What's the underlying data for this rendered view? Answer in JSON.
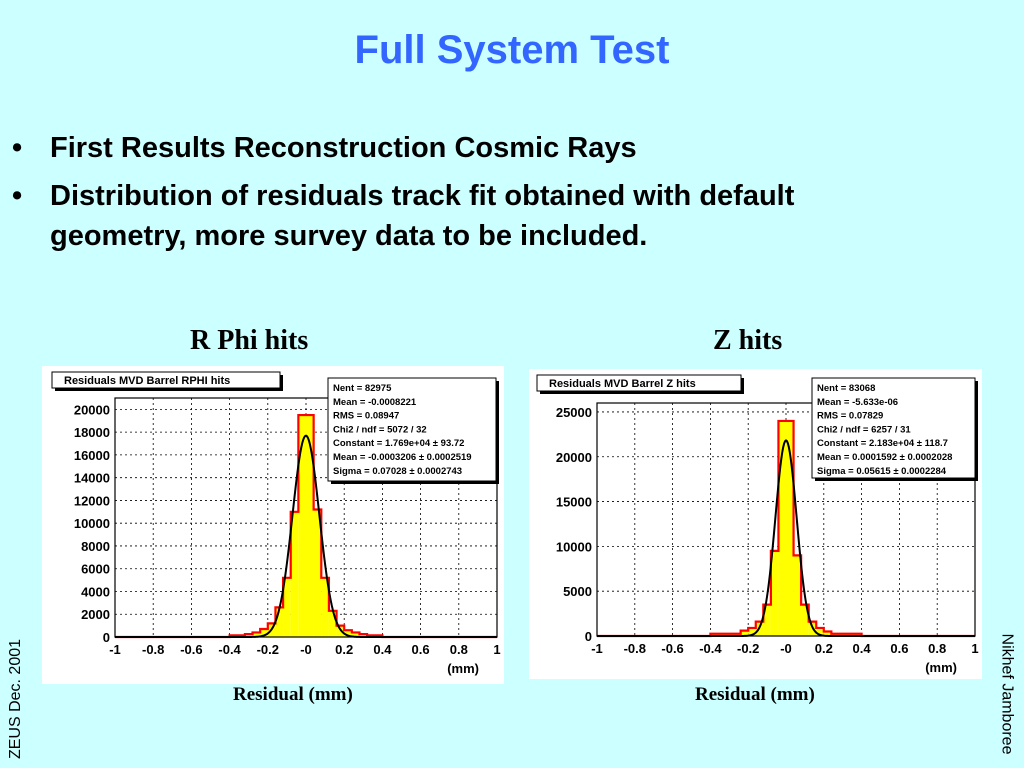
{
  "slide": {
    "title": "Full System Test",
    "bullets": [
      {
        "marker": "•",
        "text": "First Results Reconstruction Cosmic Rays"
      },
      {
        "marker": "•",
        "text": "Distribution of residuals  track fit obtained with default geometry, more survey data to be included."
      }
    ],
    "left_caption": "R Phi hits",
    "right_caption": "Z hits",
    "left_xlabel": "Residual (mm)",
    "right_xlabel": "Residual (mm)",
    "side_left": "ZEUS Dec. 2001",
    "side_right": "Nikhef Jamboree"
  },
  "colors": {
    "title": "#3366ff",
    "background": "#ccffff",
    "hist_fill": "#ffff00",
    "hist_line": "#ff0000",
    "fit_line": "#000000"
  },
  "chart_data": [
    {
      "type": "bar",
      "title": "Residuals MVD Barrel RPHI hits",
      "xlabel": "(mm)",
      "ylabel": "",
      "xlim": [
        -1,
        1
      ],
      "ylim": [
        0,
        21000
      ],
      "x_ticks": [
        "-1",
        "-0.8",
        "-0.6",
        "-0.4",
        "-0.2",
        "-0",
        "0.2",
        "0.4",
        "0.6",
        "0.8",
        "1"
      ],
      "y_ticks": [
        "0",
        "2000",
        "4000",
        "6000",
        "8000",
        "10000",
        "12000",
        "14000",
        "16000",
        "18000",
        "20000"
      ],
      "grid": true,
      "stats_box": [
        "Nent = 82975",
        "Mean  = -0.0008221",
        "RMS   = 0.08947",
        "Chi2 / ndf =   5072 / 32",
        "Constant = 1.769e+04 ± 93.72",
        "Mean     = -0.0003206 ± 0.0002519",
        "Sigma    = 0.07028 ± 0.0002743"
      ],
      "bins": [
        {
          "x0": -1.0,
          "x1": -0.4,
          "y": 0
        },
        {
          "x0": -0.4,
          "x1": -0.32,
          "y": 150
        },
        {
          "x0": -0.32,
          "x1": -0.28,
          "y": 250
        },
        {
          "x0": -0.28,
          "x1": -0.24,
          "y": 400
        },
        {
          "x0": -0.24,
          "x1": -0.2,
          "y": 700
        },
        {
          "x0": -0.2,
          "x1": -0.16,
          "y": 1200
        },
        {
          "x0": -0.16,
          "x1": -0.12,
          "y": 2600
        },
        {
          "x0": -0.12,
          "x1": -0.08,
          "y": 5200
        },
        {
          "x0": -0.08,
          "x1": -0.04,
          "y": 11000
        },
        {
          "x0": -0.04,
          "x1": 0.0,
          "y": 19500
        },
        {
          "x0": 0.0,
          "x1": 0.04,
          "y": 19500
        },
        {
          "x0": 0.04,
          "x1": 0.08,
          "y": 11200
        },
        {
          "x0": 0.08,
          "x1": 0.12,
          "y": 5200
        },
        {
          "x0": 0.12,
          "x1": 0.16,
          "y": 2300
        },
        {
          "x0": 0.16,
          "x1": 0.2,
          "y": 1000
        },
        {
          "x0": 0.2,
          "x1": 0.24,
          "y": 600
        },
        {
          "x0": 0.24,
          "x1": 0.28,
          "y": 400
        },
        {
          "x0": 0.28,
          "x1": 0.32,
          "y": 250
        },
        {
          "x0": 0.32,
          "x1": 0.4,
          "y": 150
        },
        {
          "x0": 0.4,
          "x1": 1.0,
          "y": 0
        }
      ],
      "fit": {
        "constant": 17690,
        "mean": -0.0003206,
        "sigma": 0.07028
      }
    },
    {
      "type": "bar",
      "title": "Residuals MVD Barrel Z hits",
      "xlabel": "(mm)",
      "ylabel": "",
      "xlim": [
        -1,
        1
      ],
      "ylim": [
        0,
        26000
      ],
      "x_ticks": [
        "-1",
        "-0.8",
        "-0.6",
        "-0.4",
        "-0.2",
        "-0",
        "0.2",
        "0.4",
        "0.6",
        "0.8",
        "1"
      ],
      "y_ticks": [
        "0",
        "5000",
        "10000",
        "15000",
        "20000",
        "25000"
      ],
      "grid": true,
      "stats_box": [
        "Nent = 83068",
        "Mean  = -5.633e-06",
        "RMS   = 0.07829",
        "Chi2 / ndf =  6257 / 31",
        "Constant = 2.183e+04 ± 118.7",
        "Mean     = 0.0001592 ± 0.0002028",
        "Sigma    = 0.05615 ± 0.0002284"
      ],
      "bins": [
        {
          "x0": -1.0,
          "x1": -0.4,
          "y": 0
        },
        {
          "x0": -0.4,
          "x1": -0.24,
          "y": 250
        },
        {
          "x0": -0.24,
          "x1": -0.2,
          "y": 600
        },
        {
          "x0": -0.2,
          "x1": -0.16,
          "y": 900
        },
        {
          "x0": -0.16,
          "x1": -0.12,
          "y": 1600
        },
        {
          "x0": -0.12,
          "x1": -0.08,
          "y": 3500
        },
        {
          "x0": -0.08,
          "x1": -0.04,
          "y": 9500
        },
        {
          "x0": -0.04,
          "x1": 0.0,
          "y": 24000
        },
        {
          "x0": 0.0,
          "x1": 0.04,
          "y": 24000
        },
        {
          "x0": 0.04,
          "x1": 0.08,
          "y": 9000
        },
        {
          "x0": 0.08,
          "x1": 0.12,
          "y": 3500
        },
        {
          "x0": 0.12,
          "x1": 0.16,
          "y": 1600
        },
        {
          "x0": 0.16,
          "x1": 0.2,
          "y": 900
        },
        {
          "x0": 0.2,
          "x1": 0.24,
          "y": 500
        },
        {
          "x0": 0.24,
          "x1": 0.4,
          "y": 250
        },
        {
          "x0": 0.4,
          "x1": 1.0,
          "y": 0
        }
      ],
      "fit": {
        "constant": 21830,
        "mean": 0.0001592,
        "sigma": 0.05615
      }
    }
  ]
}
